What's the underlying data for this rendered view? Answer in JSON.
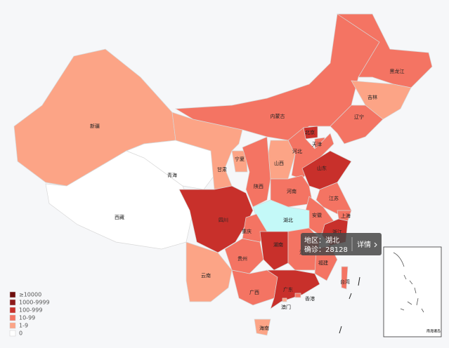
{
  "map": {
    "regions": [
      {
        "name": "新疆",
        "color": "#fca486"
      },
      {
        "name": "西藏",
        "color": "#ffffff"
      },
      {
        "name": "青海",
        "color": "#ffffff"
      },
      {
        "name": "甘肃",
        "color": "#fca486"
      },
      {
        "name": "宁夏",
        "color": "#fca486"
      },
      {
        "name": "内蒙古",
        "color": "#f47463"
      },
      {
        "name": "黑龙江",
        "color": "#f47463"
      },
      {
        "name": "吉林",
        "color": "#fca486"
      },
      {
        "name": "辽宁",
        "color": "#f47463"
      },
      {
        "name": "北京",
        "color": "#c8302b"
      },
      {
        "name": "天津",
        "color": "#f47463"
      },
      {
        "name": "河北",
        "color": "#f47463"
      },
      {
        "name": "山西",
        "color": "#fca486"
      },
      {
        "name": "山东",
        "color": "#c8302b"
      },
      {
        "name": "陕西",
        "color": "#f47463"
      },
      {
        "name": "河南",
        "color": "#f47463"
      },
      {
        "name": "江苏",
        "color": "#f47463"
      },
      {
        "name": "安徽",
        "color": "#f47463"
      },
      {
        "name": "上海",
        "color": "#f47463"
      },
      {
        "name": "湖北",
        "color": "#c4f9f8"
      },
      {
        "name": "浙江",
        "color": "#c8302b"
      },
      {
        "name": "四川",
        "color": "#c8302b"
      },
      {
        "name": "重庆",
        "color": "#f47463"
      },
      {
        "name": "湖南",
        "color": "#c8302b"
      },
      {
        "name": "江西",
        "color": "#f47463"
      },
      {
        "name": "贵州",
        "color": "#f47463"
      },
      {
        "name": "福建",
        "color": "#f47463"
      },
      {
        "name": "云南",
        "color": "#fca486"
      },
      {
        "name": "广西",
        "color": "#f47463"
      },
      {
        "name": "广东",
        "color": "#c8302b"
      },
      {
        "name": "台湾",
        "color": "#f47463"
      },
      {
        "name": "香港",
        "color": "#f47463"
      },
      {
        "name": "澳门",
        "color": "#fca486"
      },
      {
        "name": "海南",
        "color": "#fca486"
      }
    ],
    "legend": [
      {
        "label": "≥10000",
        "color": "#6e0c0c"
      },
      {
        "label": "1000-9999",
        "color": "#8e1a1a"
      },
      {
        "label": "100-999",
        "color": "#c8302b"
      },
      {
        "label": "10-99",
        "color": "#f47463"
      },
      {
        "label": "1-9",
        "color": "#fca486"
      },
      {
        "label": "0",
        "color": "#ffffff"
      }
    ],
    "inset_label": "南海诸岛",
    "tooltip": {
      "region": "地区：湖北",
      "confirmed": "确诊：28128",
      "detail": "详情"
    }
  }
}
